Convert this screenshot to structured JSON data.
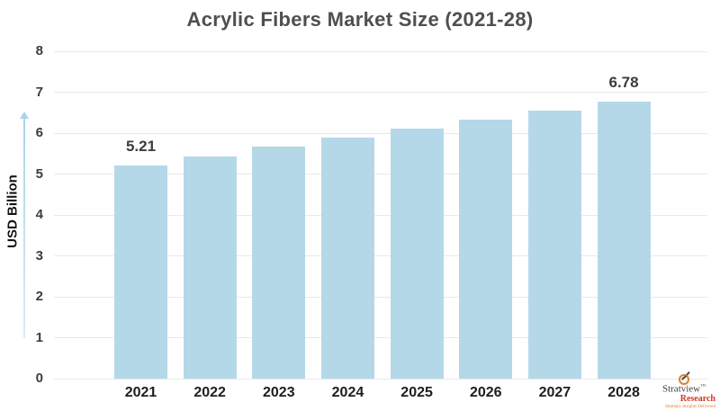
{
  "chart": {
    "title": "Acrylic Fibers Market Size (2021-28)",
    "ylabel": "USD Billion"
  },
  "chart_data": {
    "type": "bar",
    "categories": [
      "2021",
      "2022",
      "2023",
      "2024",
      "2025",
      "2026",
      "2027",
      "2028"
    ],
    "values": [
      5.21,
      5.43,
      5.66,
      5.88,
      6.11,
      6.33,
      6.55,
      6.78
    ],
    "labeled_points": {
      "2021": "5.21",
      "2028": "6.78"
    },
    "title": "Acrylic Fibers Market Size (2021-28)",
    "xlabel": "",
    "ylabel": "USD Billion",
    "ylim": [
      0,
      8
    ],
    "ytick_step": 1,
    "grid": true,
    "legend": "none",
    "bar_color": "#b5d8e9"
  },
  "colors": {
    "bar": "#b5d8e9",
    "arrow": "#a9d3ea",
    "grid": "#e9e9e9",
    "title_text": "#4f4f4f",
    "logo_red": "#cc3a28",
    "logo_orange": "#dd8033"
  },
  "logo": {
    "brand": "Stratview",
    "tm": "™",
    "sub": "Research",
    "tagline": "Strategic Insights Delivered"
  }
}
